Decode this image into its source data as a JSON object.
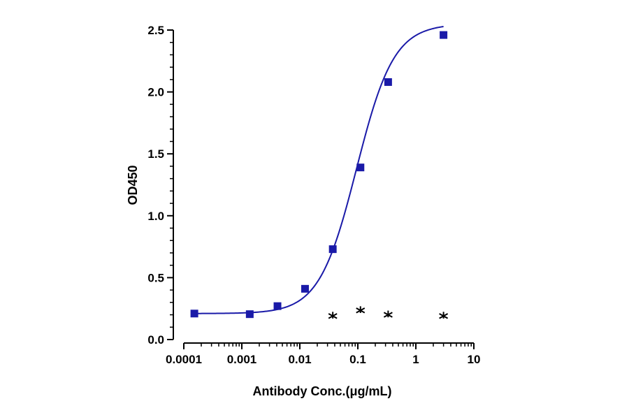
{
  "chart_data": {
    "type": "scatter",
    "xscale": "log",
    "xlabel": "Antibody Conc.(μg/mL)",
    "ylabel": "OD450",
    "xlim": [
      0.0001,
      10
    ],
    "ylim": [
      0,
      2.5
    ],
    "xticks": [
      {
        "value": 0.0001,
        "label": "0.0001"
      },
      {
        "value": 0.001,
        "label": "0.001"
      },
      {
        "value": 0.01,
        "label": "0.01"
      },
      {
        "value": 0.1,
        "label": "0.1"
      },
      {
        "value": 1,
        "label": "1"
      },
      {
        "value": 10,
        "label": "10"
      }
    ],
    "yticks": [
      {
        "value": 0,
        "label": "0.0"
      },
      {
        "value": 0.5,
        "label": "0.5"
      },
      {
        "value": 1.0,
        "label": "1.0"
      },
      {
        "value": 1.5,
        "label": "1.5"
      },
      {
        "value": 2.0,
        "label": "2.0"
      },
      {
        "value": 2.5,
        "label": "2.5"
      }
    ],
    "grid": false,
    "series": [
      {
        "marker": "square",
        "color": "#1a1aa8",
        "fit": "4PL",
        "x": [
          0.000152,
          0.00137,
          0.00412,
          0.0123,
          0.037,
          0.111,
          0.333,
          3.0
        ],
        "y": [
          0.21,
          0.205,
          0.27,
          0.41,
          0.73,
          1.39,
          2.08,
          2.46
        ]
      },
      {
        "marker": "star",
        "color": "#000000",
        "x": [
          0.037,
          0.111,
          0.333,
          3.0
        ],
        "y": [
          0.19,
          0.235,
          0.2,
          0.19
        ]
      }
    ]
  }
}
